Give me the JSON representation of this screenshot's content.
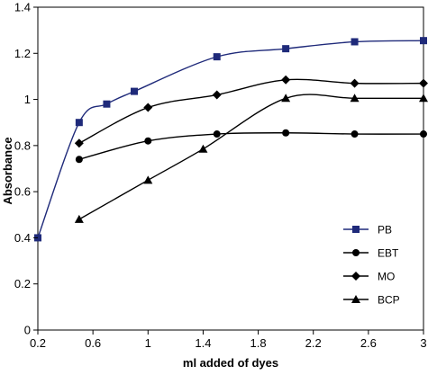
{
  "chart_data": {
    "type": "line",
    "title": "",
    "xlabel": "ml added of dyes",
    "ylabel": "Absorbance",
    "xlim": [
      0.2,
      3
    ],
    "ylim": [
      0,
      1.4
    ],
    "x_ticks": [
      "0.2",
      "0.6",
      "1",
      "1.4",
      "1.8",
      "2.2",
      "2.6",
      "3"
    ],
    "y_ticks": [
      "0",
      "0.2",
      "0.4",
      "0.6",
      "0.8",
      "1",
      "1.2",
      "1.4"
    ],
    "grid": false,
    "legend_position": "bottom-right",
    "series": [
      {
        "name": "PB",
        "marker": "square",
        "color": "#1f2a7a",
        "points": [
          [
            0.2,
            0.4
          ],
          [
            0.5,
            0.9
          ],
          [
            0.7,
            0.98
          ],
          [
            0.9,
            1.035
          ],
          [
            1.5,
            1.185
          ],
          [
            2.0,
            1.22
          ],
          [
            2.5,
            1.25
          ],
          [
            3.0,
            1.255
          ]
        ]
      },
      {
        "name": "EBT",
        "marker": "circle",
        "color": "#000000",
        "points": [
          [
            0.5,
            0.74
          ],
          [
            1.0,
            0.82
          ],
          [
            1.5,
            0.85
          ],
          [
            2.0,
            0.855
          ],
          [
            2.5,
            0.85
          ],
          [
            3.0,
            0.85
          ]
        ]
      },
      {
        "name": "MO",
        "marker": "diamond",
        "color": "#000000",
        "points": [
          [
            0.5,
            0.81
          ],
          [
            1.0,
            0.965
          ],
          [
            1.5,
            1.02
          ],
          [
            2.0,
            1.085
          ],
          [
            2.5,
            1.07
          ],
          [
            3.0,
            1.07
          ]
        ]
      },
      {
        "name": "BCP",
        "marker": "triangle",
        "color": "#000000",
        "points": [
          [
            0.5,
            0.48
          ],
          [
            1.0,
            0.65
          ],
          [
            1.4,
            0.785
          ],
          [
            2.0,
            1.005
          ],
          [
            2.5,
            1.005
          ],
          [
            3.0,
            1.005
          ]
        ]
      }
    ]
  }
}
